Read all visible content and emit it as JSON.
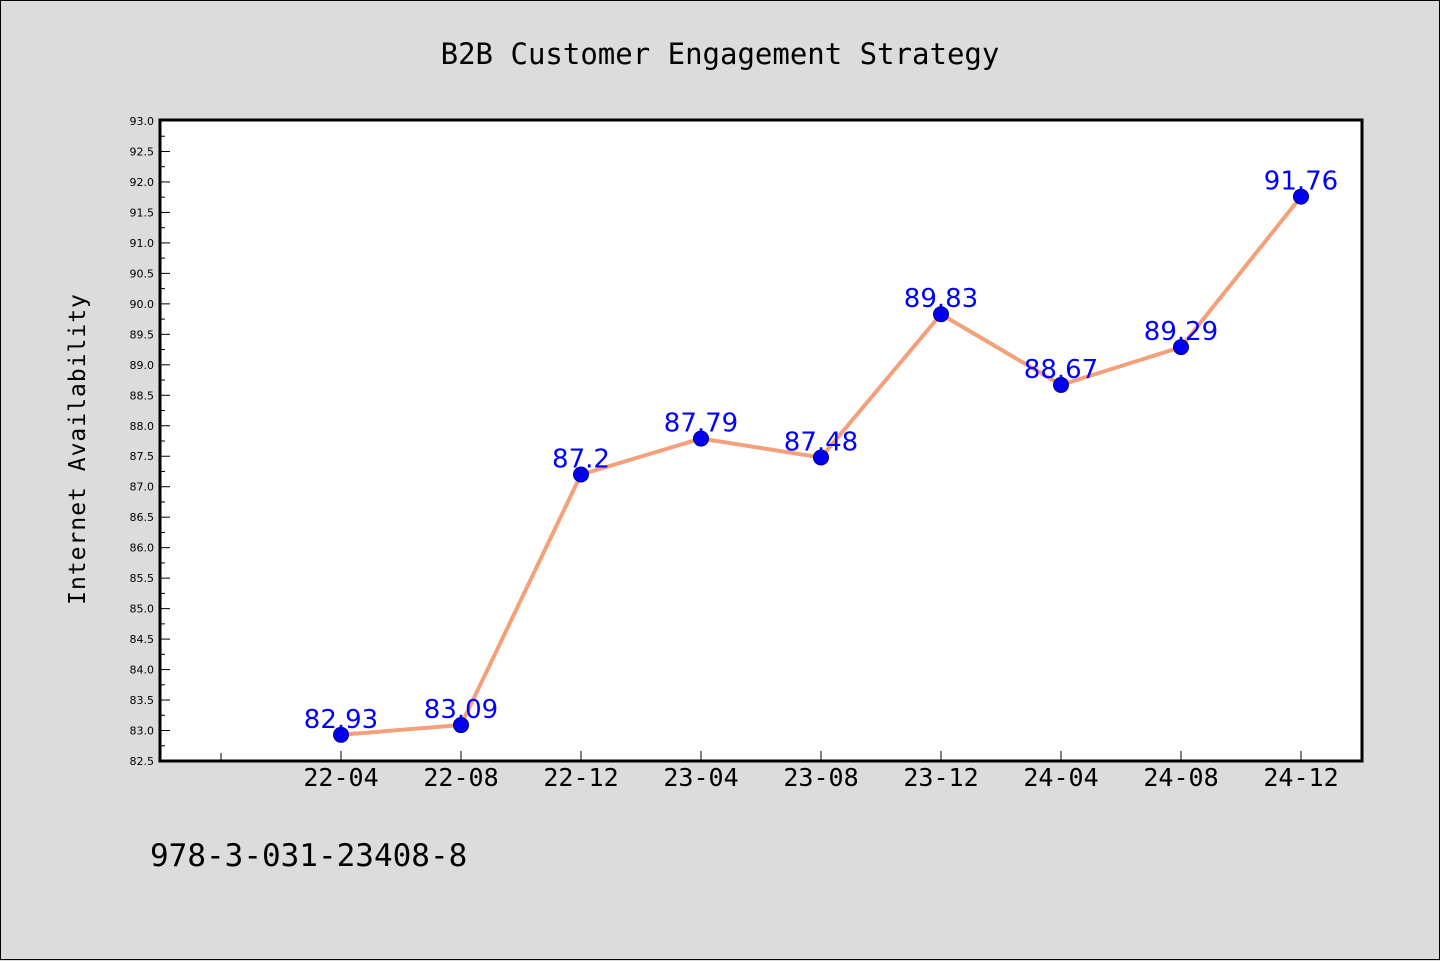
{
  "chart_data": {
    "type": "line",
    "title": "B2B Customer Engagement Strategy",
    "xlabel": "",
    "ylabel": "Internet Availability",
    "categories": [
      "22-04",
      "22-08",
      "22-12",
      "23-04",
      "23-08",
      "23-12",
      "24-04",
      "24-08",
      "24-12"
    ],
    "series": [
      {
        "values": [
          82.93,
          83.09,
          87.2,
          87.79,
          87.48,
          89.83,
          88.67,
          89.29,
          91.76
        ],
        "labels": [
          "82.93",
          "83.09",
          "87.2",
          "87.79",
          "87.48",
          "89.83",
          "88.67",
          "89.29",
          "91.76"
        ],
        "line_color": "#f4a07a",
        "marker_color": "#0000ee",
        "label_color": "#0000ff"
      }
    ],
    "ylim": [
      82.5,
      93.0
    ],
    "yticks": [
      "82.5",
      "83.0",
      "83.5",
      "84.0",
      "84.5",
      "85.0",
      "85.5",
      "86.0",
      "86.5",
      "87.0",
      "87.5",
      "88.0",
      "88.5",
      "89.0",
      "89.5",
      "90.0",
      "90.5",
      "91.0",
      "91.5",
      "92.0",
      "92.5",
      "93.0"
    ],
    "grid": false,
    "legend": "none"
  },
  "footer": {
    "text": "978-3-031-23408-8"
  },
  "colors": {
    "background": "#dcdcdc",
    "plot_background": "#ffffff"
  }
}
